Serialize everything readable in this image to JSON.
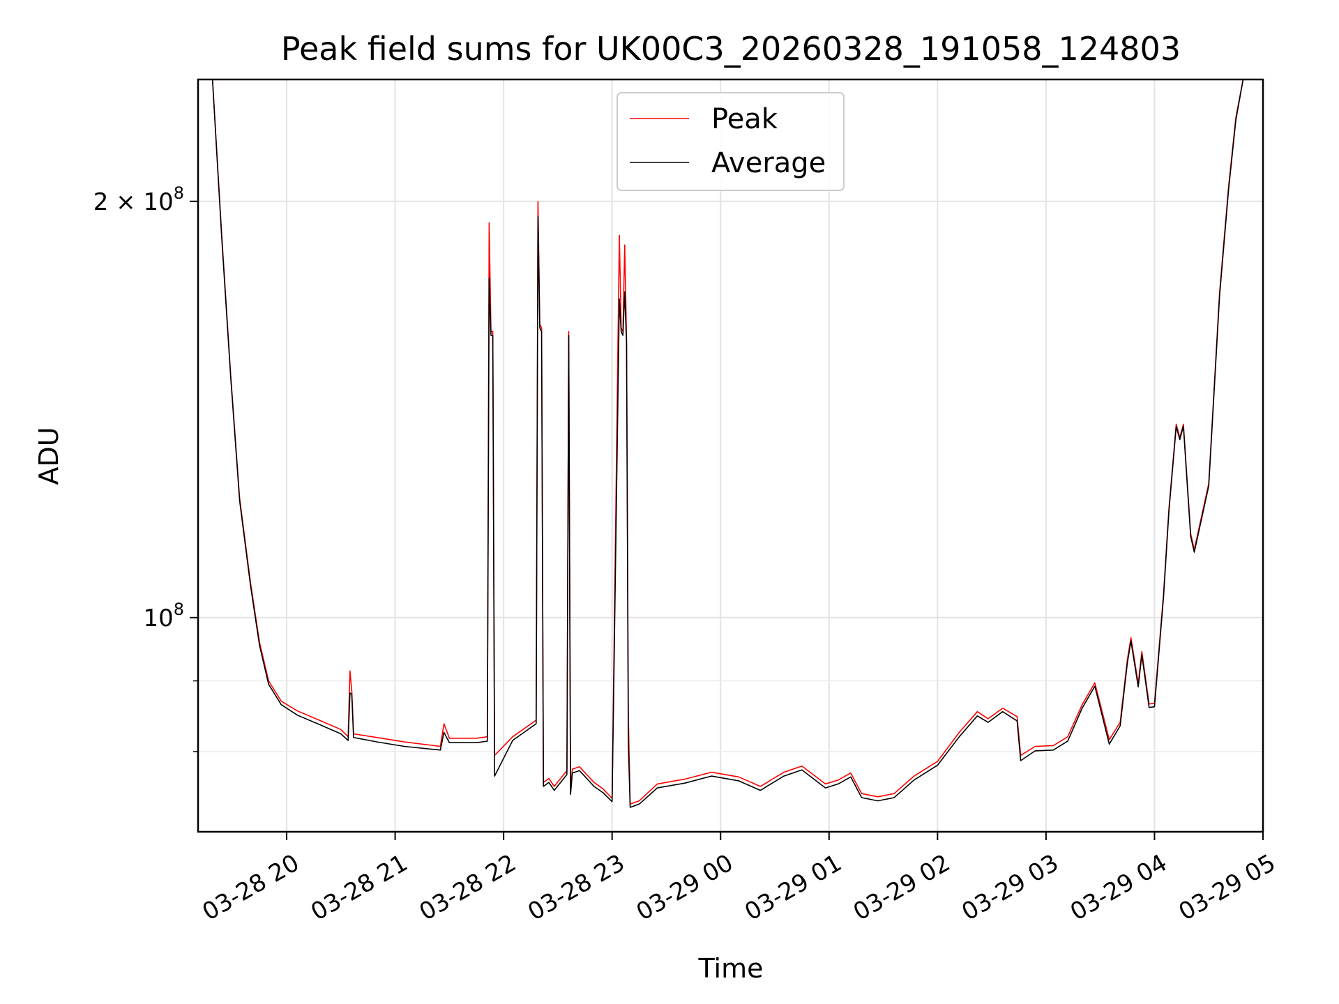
{
  "chart_data": {
    "type": "line",
    "title": "Peak field sums for UK00C3_20260328_191058_124803",
    "xlabel": "Time",
    "ylabel": "ADU",
    "x_format": "MM-DD HH (2026)",
    "xlim": [
      "2026-03-28T19:11:00",
      "2026-03-29T05:00:00"
    ],
    "ylim": [
      70000000,
      245000000
    ],
    "yscale": "log",
    "grid": true,
    "legend_position": "top-center",
    "x_tick_labels": [
      "03-28 20",
      "03-28 21",
      "03-28 22",
      "03-28 23",
      "03-29 00",
      "03-29 01",
      "03-29 02",
      "03-29 03",
      "03-29 04",
      "03-29 05"
    ],
    "x_ticks": [
      "2026-03-28T20:00:00",
      "2026-03-28T21:00:00",
      "2026-03-28T22:00:00",
      "2026-03-28T23:00:00",
      "2026-03-29T00:00:00",
      "2026-03-29T01:00:00",
      "2026-03-29T02:00:00",
      "2026-03-29T03:00:00",
      "2026-03-29T04:00:00",
      "2026-03-29T05:00:00"
    ],
    "y_ticks_major": [
      {
        "value": 100000000,
        "label": "10",
        "exp": "8"
      },
      {
        "value": 200000000,
        "label": "2 × 10",
        "exp": "8"
      }
    ],
    "y_ticks_minor": [
      80000000,
      90000000
    ],
    "series": [
      {
        "name": "Peak",
        "color": "#ff0000",
        "points": [
          [
            "2026-03-28T19:11:00",
            245000000
          ],
          [
            "2026-03-28T19:19:00",
            245000000
          ],
          [
            "2026-03-28T19:24:00",
            190000000
          ],
          [
            "2026-03-28T19:29:00",
            150000000
          ],
          [
            "2026-03-28T19:34:00",
            122000000
          ],
          [
            "2026-03-28T19:40:00",
            106000000
          ],
          [
            "2026-03-28T19:45:00",
            96000000
          ],
          [
            "2026-03-28T19:50:00",
            90000000
          ],
          [
            "2026-03-28T19:57:00",
            87000000
          ],
          [
            "2026-03-28T20:06:00",
            85600000
          ],
          [
            "2026-03-28T20:18:00",
            84300000
          ],
          [
            "2026-03-28T20:30:00",
            83000000
          ],
          [
            "2026-03-28T20:34:00",
            82000000
          ],
          [
            "2026-03-28T20:35:00",
            91500000
          ],
          [
            "2026-03-28T20:36:00",
            88500000
          ],
          [
            "2026-03-28T20:37:00",
            82400000
          ],
          [
            "2026-03-28T20:50:00",
            81900000
          ],
          [
            "2026-03-28T21:05:00",
            81300000
          ],
          [
            "2026-03-28T21:25:00",
            80700000
          ],
          [
            "2026-03-28T21:27:00",
            83800000
          ],
          [
            "2026-03-28T21:30:00",
            81800000
          ],
          [
            "2026-03-28T21:45:00",
            81800000
          ],
          [
            "2026-03-28T21:51:00",
            82000000
          ],
          [
            "2026-03-28T21:52:00",
            193000000
          ],
          [
            "2026-03-28T21:53:00",
            161000000
          ],
          [
            "2026-03-28T21:54:00",
            161000000
          ],
          [
            "2026-03-28T21:55:00",
            79500000
          ],
          [
            "2026-03-28T22:05:00",
            82000000
          ],
          [
            "2026-03-28T22:18:00",
            84300000
          ],
          [
            "2026-03-28T22:19:00",
            200000000
          ],
          [
            "2026-03-28T22:20:00",
            163000000
          ],
          [
            "2026-03-28T22:21:00",
            162000000
          ],
          [
            "2026-03-28T22:22:00",
            76000000
          ],
          [
            "2026-03-28T22:25:00",
            76500000
          ],
          [
            "2026-03-28T22:28:00",
            75500000
          ],
          [
            "2026-03-28T22:35:00",
            77500000
          ],
          [
            "2026-03-28T22:36:00",
            161000000
          ],
          [
            "2026-03-28T22:37:00",
            75000000
          ],
          [
            "2026-03-28T22:38:00",
            77700000
          ],
          [
            "2026-03-28T22:42:00",
            78000000
          ],
          [
            "2026-03-28T22:50:00",
            76000000
          ],
          [
            "2026-03-28T22:55:00",
            75200000
          ],
          [
            "2026-03-28T23:00:00",
            74000000
          ],
          [
            "2026-03-28T23:04:00",
            189000000
          ],
          [
            "2026-03-28T23:05:00",
            162000000
          ],
          [
            "2026-03-28T23:06:00",
            161000000
          ],
          [
            "2026-03-28T23:07:00",
            186000000
          ],
          [
            "2026-03-28T23:08:00",
            159000000
          ],
          [
            "2026-03-28T23:09:00",
            85000000
          ],
          [
            "2026-03-28T23:10:00",
            73300000
          ],
          [
            "2026-03-28T23:15:00",
            73700000
          ],
          [
            "2026-03-28T23:25:00",
            75800000
          ],
          [
            "2026-03-28T23:40:00",
            76400000
          ],
          [
            "2026-03-28T23:55:00",
            77300000
          ],
          [
            "2026-03-29T00:10:00",
            76700000
          ],
          [
            "2026-03-29T00:22:00",
            75500000
          ],
          [
            "2026-03-29T00:35:00",
            77300000
          ],
          [
            "2026-03-29T00:45:00",
            78100000
          ],
          [
            "2026-03-29T00:58:00",
            75800000
          ],
          [
            "2026-03-29T01:05:00",
            76300000
          ],
          [
            "2026-03-29T01:12:00",
            77200000
          ],
          [
            "2026-03-29T01:18:00",
            74600000
          ],
          [
            "2026-03-29T01:27:00",
            74200000
          ],
          [
            "2026-03-29T01:36:00",
            74600000
          ],
          [
            "2026-03-29T01:47:00",
            76800000
          ],
          [
            "2026-03-29T02:00:00",
            78700000
          ],
          [
            "2026-03-29T02:12:00",
            82600000
          ],
          [
            "2026-03-29T02:22:00",
            85500000
          ],
          [
            "2026-03-29T02:28:00",
            84500000
          ],
          [
            "2026-03-29T02:36:00",
            86000000
          ],
          [
            "2026-03-29T02:44:00",
            84800000
          ],
          [
            "2026-03-29T02:46:00",
            79500000
          ],
          [
            "2026-03-29T02:54:00",
            80700000
          ],
          [
            "2026-03-29T03:04:00",
            80800000
          ],
          [
            "2026-03-29T03:12:00",
            82000000
          ],
          [
            "2026-03-29T03:20:00",
            86500000
          ],
          [
            "2026-03-29T03:27:00",
            89700000
          ],
          [
            "2026-03-29T03:35:00",
            81600000
          ],
          [
            "2026-03-29T03:41:00",
            84000000
          ],
          [
            "2026-03-29T03:45:00",
            93300000
          ],
          [
            "2026-03-29T03:47:00",
            96700000
          ],
          [
            "2026-03-29T03:51:00",
            89600000
          ],
          [
            "2026-03-29T03:53:00",
            94500000
          ],
          [
            "2026-03-29T03:57:00",
            86600000
          ],
          [
            "2026-03-29T04:00:00",
            86700000
          ],
          [
            "2026-03-29T04:05:00",
            104000000
          ],
          [
            "2026-03-29T04:08:00",
            120000000
          ],
          [
            "2026-03-29T04:12:00",
            138000000
          ],
          [
            "2026-03-29T04:14:00",
            135000000
          ],
          [
            "2026-03-29T04:16:00",
            138000000
          ],
          [
            "2026-03-29T04:20:00",
            115000000
          ],
          [
            "2026-03-29T04:22:00",
            112000000
          ],
          [
            "2026-03-29T04:30:00",
            125000000
          ],
          [
            "2026-03-29T04:36:00",
            172000000
          ],
          [
            "2026-03-29T04:41:00",
            205000000
          ],
          [
            "2026-03-29T04:45:00",
            230000000
          ],
          [
            "2026-03-29T04:49:00",
            245000000
          ],
          [
            "2026-03-29T05:00:00",
            245000000
          ]
        ]
      },
      {
        "name": "Average",
        "color": "#000000",
        "points": [
          [
            "2026-03-28T19:11:00",
            245000000
          ],
          [
            "2026-03-28T19:19:00",
            245000000
          ],
          [
            "2026-03-28T19:24:00",
            189000000
          ],
          [
            "2026-03-28T19:29:00",
            149500000
          ],
          [
            "2026-03-28T19:34:00",
            121500000
          ],
          [
            "2026-03-28T19:40:00",
            105500000
          ],
          [
            "2026-03-28T19:45:00",
            95500000
          ],
          [
            "2026-03-28T19:50:00",
            89500000
          ],
          [
            "2026-03-28T19:57:00",
            86500000
          ],
          [
            "2026-03-28T20:06:00",
            85000000
          ],
          [
            "2026-03-28T20:18:00",
            83700000
          ],
          [
            "2026-03-28T20:30:00",
            82400000
          ],
          [
            "2026-03-28T20:34:00",
            81500000
          ],
          [
            "2026-03-28T20:35:00",
            88200000
          ],
          [
            "2026-03-28T20:36:00",
            88000000
          ],
          [
            "2026-03-28T20:37:00",
            81900000
          ],
          [
            "2026-03-28T20:50:00",
            81300000
          ],
          [
            "2026-03-28T21:05:00",
            80700000
          ],
          [
            "2026-03-28T21:25:00",
            80200000
          ],
          [
            "2026-03-28T21:27:00",
            82600000
          ],
          [
            "2026-03-28T21:30:00",
            81200000
          ],
          [
            "2026-03-28T21:45:00",
            81200000
          ],
          [
            "2026-03-28T21:51:00",
            81400000
          ],
          [
            "2026-03-28T21:52:00",
            176000000
          ],
          [
            "2026-03-28T21:53:00",
            160000000
          ],
          [
            "2026-03-28T21:54:00",
            160000000
          ],
          [
            "2026-03-28T21:55:00",
            76800000
          ],
          [
            "2026-03-28T22:05:00",
            81500000
          ],
          [
            "2026-03-28T22:18:00",
            83800000
          ],
          [
            "2026-03-28T22:19:00",
            195000000
          ],
          [
            "2026-03-28T22:20:00",
            162000000
          ],
          [
            "2026-03-28T22:21:00",
            161000000
          ],
          [
            "2026-03-28T22:22:00",
            75500000
          ],
          [
            "2026-03-28T22:25:00",
            76000000
          ],
          [
            "2026-03-28T22:28:00",
            75000000
          ],
          [
            "2026-03-28T22:35:00",
            77000000
          ],
          [
            "2026-03-28T22:36:00",
            160000000
          ],
          [
            "2026-03-28T22:37:00",
            74500000
          ],
          [
            "2026-03-28T22:38:00",
            77200000
          ],
          [
            "2026-03-28T22:42:00",
            77500000
          ],
          [
            "2026-03-28T22:50:00",
            75500000
          ],
          [
            "2026-03-28T22:55:00",
            74700000
          ],
          [
            "2026-03-28T23:00:00",
            73600000
          ],
          [
            "2026-03-28T23:04:00",
            170000000
          ],
          [
            "2026-03-28T23:05:00",
            161000000
          ],
          [
            "2026-03-28T23:06:00",
            160000000
          ],
          [
            "2026-03-28T23:07:00",
            172000000
          ],
          [
            "2026-03-28T23:08:00",
            158000000
          ],
          [
            "2026-03-28T23:09:00",
            81000000
          ],
          [
            "2026-03-28T23:10:00",
            72900000
          ],
          [
            "2026-03-28T23:15:00",
            73300000
          ],
          [
            "2026-03-28T23:25:00",
            75300000
          ],
          [
            "2026-03-28T23:40:00",
            75900000
          ],
          [
            "2026-03-28T23:55:00",
            76800000
          ],
          [
            "2026-03-29T00:10:00",
            76200000
          ],
          [
            "2026-03-29T00:22:00",
            75000000
          ],
          [
            "2026-03-29T00:35:00",
            76800000
          ],
          [
            "2026-03-29T00:45:00",
            77600000
          ],
          [
            "2026-03-29T00:58:00",
            75300000
          ],
          [
            "2026-03-29T01:05:00",
            75800000
          ],
          [
            "2026-03-29T01:12:00",
            76700000
          ],
          [
            "2026-03-29T01:18:00",
            74100000
          ],
          [
            "2026-03-29T01:27:00",
            73700000
          ],
          [
            "2026-03-29T01:36:00",
            74100000
          ],
          [
            "2026-03-29T01:47:00",
            76300000
          ],
          [
            "2026-03-29T02:00:00",
            78200000
          ],
          [
            "2026-03-29T02:12:00",
            82000000
          ],
          [
            "2026-03-29T02:22:00",
            84900000
          ],
          [
            "2026-03-29T02:28:00",
            84000000
          ],
          [
            "2026-03-29T02:36:00",
            85500000
          ],
          [
            "2026-03-29T02:44:00",
            84200000
          ],
          [
            "2026-03-29T02:46:00",
            78800000
          ],
          [
            "2026-03-29T02:54:00",
            80100000
          ],
          [
            "2026-03-29T03:04:00",
            80200000
          ],
          [
            "2026-03-29T03:12:00",
            81400000
          ],
          [
            "2026-03-29T03:20:00",
            86000000
          ],
          [
            "2026-03-29T03:27:00",
            89200000
          ],
          [
            "2026-03-29T03:35:00",
            81000000
          ],
          [
            "2026-03-29T03:41:00",
            83500000
          ],
          [
            "2026-03-29T03:45:00",
            92800000
          ],
          [
            "2026-03-29T03:47:00",
            96200000
          ],
          [
            "2026-03-29T03:51:00",
            89100000
          ],
          [
            "2026-03-29T03:53:00",
            94000000
          ],
          [
            "2026-03-29T03:57:00",
            86100000
          ],
          [
            "2026-03-29T04:00:00",
            86200000
          ],
          [
            "2026-03-29T04:05:00",
            103500000
          ],
          [
            "2026-03-29T04:08:00",
            119500000
          ],
          [
            "2026-03-29T04:12:00",
            137500000
          ],
          [
            "2026-03-29T04:14:00",
            134500000
          ],
          [
            "2026-03-29T04:16:00",
            137500000
          ],
          [
            "2026-03-29T04:20:00",
            114500000
          ],
          [
            "2026-03-29T04:22:00",
            111500000
          ],
          [
            "2026-03-29T04:30:00",
            124500000
          ],
          [
            "2026-03-29T04:36:00",
            171000000
          ],
          [
            "2026-03-29T04:41:00",
            204000000
          ],
          [
            "2026-03-29T04:45:00",
            229000000
          ],
          [
            "2026-03-29T04:49:00",
            245000000
          ],
          [
            "2026-03-29T05:00:00",
            245000000
          ]
        ]
      }
    ]
  }
}
